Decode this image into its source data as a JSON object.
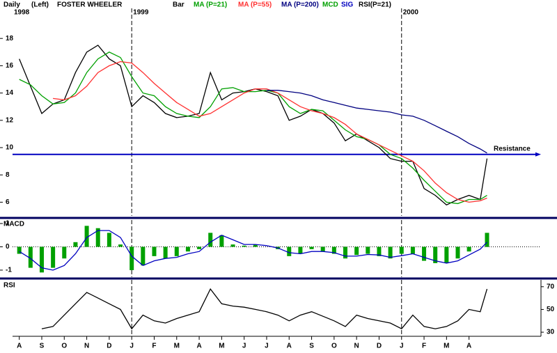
{
  "chart_data": [
    {
      "type": "line",
      "title": "FOSTER WHEELER",
      "period": "Daily",
      "scale_side": "(Left)",
      "xlim": [
        -0.3,
        23.2
      ],
      "x": [
        0,
        0.5,
        1,
        1.5,
        2,
        2.5,
        3,
        3.5,
        4,
        4.5,
        5,
        5.5,
        6,
        6.5,
        7,
        7.5,
        8,
        8.5,
        9,
        9.5,
        10,
        10.5,
        11,
        11.5,
        12,
        12.5,
        13,
        13.5,
        14,
        14.5,
        15,
        15.5,
        16,
        16.5,
        17,
        17.5,
        18,
        18.5,
        19,
        19.5,
        20,
        20.5,
        20.8
      ],
      "ylim": [
        5,
        20
      ],
      "yticks": [
        6,
        8,
        10,
        12,
        14,
        16,
        18
      ],
      "years": [
        {
          "label": "1998",
          "x": -0.3
        },
        {
          "label": "1999",
          "x": 5
        },
        {
          "label": "2000",
          "x": 17
        }
      ],
      "annotations": [
        {
          "text": "Resistance",
          "y": 9.5,
          "color": "#0000c0"
        }
      ],
      "series": [
        {
          "name": "Bar",
          "color": "#000000",
          "values": [
            16.5,
            14.5,
            12.5,
            13.2,
            13.5,
            15.5,
            17,
            17.5,
            16.5,
            16,
            13,
            13.8,
            13.3,
            12.5,
            12.2,
            12.3,
            12.5,
            15.5,
            13.5,
            14,
            14.1,
            14.3,
            14.1,
            13.8,
            12,
            12.3,
            12.8,
            12.5,
            11.8,
            10.5,
            11,
            10.5,
            10,
            9.2,
            9,
            9,
            7,
            6.5,
            5.8,
            6.2,
            6.5,
            6.2,
            9.2
          ]
        },
        {
          "name": "MA (P=21)",
          "color": "#00a000",
          "values": [
            15.0,
            14.6,
            13.8,
            13.2,
            13.3,
            14.0,
            15.5,
            16.5,
            17.0,
            16.6,
            15.2,
            14.0,
            13.8,
            13.0,
            12.5,
            12.3,
            12.2,
            13.0,
            14.3,
            14.4,
            14.1,
            14.1,
            14.2,
            14.0,
            13.0,
            12.5,
            12.8,
            12.7,
            12.0,
            11.3,
            10.8,
            10.6,
            10.2,
            9.5,
            9.2,
            8.5,
            7.6,
            6.8,
            6.0,
            5.9,
            6.2,
            6.2,
            6.5
          ]
        },
        {
          "name": "MA (P=55)",
          "color": "#ff3030",
          "values": [
            null,
            null,
            null,
            13.6,
            13.5,
            13.8,
            14.5,
            15.5,
            16.0,
            16.3,
            16.2,
            15.5,
            14.7,
            14.0,
            13.3,
            12.8,
            12.3,
            12.5,
            13.0,
            13.5,
            14.0,
            14.3,
            14.3,
            14.0,
            13.5,
            13.0,
            12.7,
            12.5,
            12.2,
            11.7,
            11.0,
            10.6,
            10.2,
            9.8,
            9.4,
            9.0,
            8.3,
            7.4,
            6.7,
            6.2,
            6.0,
            6.1,
            6.3
          ]
        },
        {
          "name": "MA (P=200)",
          "color": "#000080",
          "values": [
            null,
            null,
            null,
            null,
            null,
            null,
            null,
            null,
            null,
            null,
            null,
            null,
            null,
            null,
            null,
            null,
            null,
            null,
            null,
            null,
            null,
            null,
            14.2,
            14.2,
            14.1,
            14.0,
            13.8,
            13.5,
            13.3,
            13.1,
            12.9,
            12.8,
            12.7,
            12.6,
            12.4,
            12.3,
            12.0,
            11.6,
            11.2,
            10.8,
            10.3,
            9.9,
            9.6
          ]
        }
      ]
    },
    {
      "type": "line",
      "title": "MACD",
      "xlim": [
        -0.3,
        23.2
      ],
      "x": [
        0,
        0.5,
        1,
        1.5,
        2,
        2.5,
        3,
        3.5,
        4,
        4.5,
        5,
        5.5,
        6,
        6.5,
        7,
        7.5,
        8,
        8.5,
        9,
        9.5,
        10,
        10.5,
        11,
        11.5,
        12,
        12.5,
        13,
        13.5,
        14,
        14.5,
        15,
        15.5,
        16,
        16.5,
        17,
        17.5,
        18,
        18.5,
        19,
        19.5,
        20,
        20.5,
        20.8
      ],
      "ylim": [
        -1.3,
        1.15
      ],
      "yticks": [
        1,
        0,
        -1
      ],
      "series": [
        {
          "name": "MCD",
          "type": "bar",
          "color": "#00a000",
          "values": [
            -0.3,
            -0.9,
            -1.1,
            -0.9,
            -0.5,
            0.2,
            0.9,
            0.8,
            0.6,
            0.1,
            -1.0,
            -0.8,
            -0.4,
            -0.5,
            -0.4,
            -0.2,
            -0.1,
            0.6,
            0.5,
            0.1,
            0.05,
            0.1,
            0,
            -0.1,
            -0.4,
            -0.3,
            -0.1,
            -0.2,
            -0.3,
            -0.5,
            -0.35,
            -0.3,
            -0.4,
            -0.5,
            -0.3,
            -0.3,
            -0.6,
            -0.7,
            -0.7,
            -0.5,
            -0.2,
            0,
            0.6
          ]
        },
        {
          "name": "SIG",
          "type": "line",
          "color": "#0000c0",
          "values": [
            -0.2,
            -0.5,
            -0.9,
            -1.0,
            -0.8,
            -0.3,
            0.4,
            0.7,
            0.7,
            0.4,
            -0.4,
            -0.8,
            -0.6,
            -0.5,
            -0.45,
            -0.3,
            -0.2,
            0.2,
            0.5,
            0.3,
            0.1,
            0.1,
            0.05,
            -0.05,
            -0.25,
            -0.3,
            -0.2,
            -0.2,
            -0.25,
            -0.4,
            -0.4,
            -0.33,
            -0.35,
            -0.45,
            -0.38,
            -0.3,
            -0.45,
            -0.6,
            -0.7,
            -0.6,
            -0.35,
            -0.1,
            0.2
          ]
        }
      ]
    },
    {
      "type": "line",
      "title": "RSI",
      "xlim": [
        -0.3,
        23.2
      ],
      "x": [
        0,
        0.5,
        1,
        1.5,
        2,
        2.5,
        3,
        3.5,
        4,
        4.5,
        5,
        5.5,
        6,
        6.5,
        7,
        7.5,
        8,
        8.5,
        9,
        9.5,
        10,
        10.5,
        11,
        11.5,
        12,
        12.5,
        13,
        13.5,
        14,
        14.5,
        15,
        15.5,
        16,
        16.5,
        17,
        17.5,
        18,
        18.5,
        19,
        19.5,
        20,
        20.5,
        20.8
      ],
      "ylim": [
        27,
        76
      ],
      "yticks": [
        70,
        50,
        30
      ],
      "xticks": [
        {
          "value": 0,
          "label": "A"
        },
        {
          "value": 1,
          "label": "S"
        },
        {
          "value": 2,
          "label": "O"
        },
        {
          "value": 3,
          "label": "N"
        },
        {
          "value": 4,
          "label": "D"
        },
        {
          "value": 5,
          "label": "J"
        },
        {
          "value": 6,
          "label": "F"
        },
        {
          "value": 7,
          "label": "M"
        },
        {
          "value": 8,
          "label": "A"
        },
        {
          "value": 9,
          "label": "M"
        },
        {
          "value": 10,
          "label": "J"
        },
        {
          "value": 11,
          "label": "J"
        },
        {
          "value": 12,
          "label": "A"
        },
        {
          "value": 13,
          "label": "S"
        },
        {
          "value": 14,
          "label": "O"
        },
        {
          "value": 15,
          "label": "N"
        },
        {
          "value": 16,
          "label": "D"
        },
        {
          "value": 17,
          "label": "J"
        },
        {
          "value": 18,
          "label": "F"
        },
        {
          "value": 19,
          "label": "M"
        },
        {
          "value": 20,
          "label": "A"
        }
      ],
      "series": [
        {
          "name": "RSI(P=21)",
          "color": "#000000",
          "values": [
            null,
            null,
            33,
            35,
            45,
            55,
            65,
            60,
            55,
            50,
            33,
            45,
            40,
            38,
            42,
            45,
            48,
            68,
            55,
            53,
            52,
            50,
            48,
            45,
            40,
            45,
            48,
            44,
            40,
            35,
            45,
            42,
            40,
            38,
            33,
            45,
            35,
            33,
            35,
            40,
            50,
            48,
            68
          ]
        }
      ]
    }
  ]
}
